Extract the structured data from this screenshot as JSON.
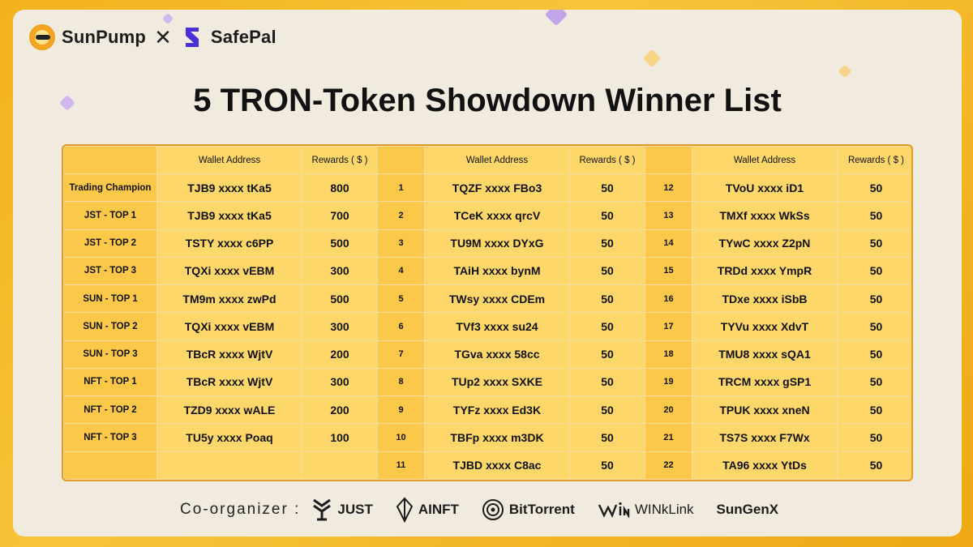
{
  "header": {
    "brand_left": "SunPump",
    "separator": "✕",
    "brand_right": "SafePal"
  },
  "title": "5 TRON-Token Showdown Winner List",
  "columns": {
    "wallet_header": "Wallet Address",
    "rewards_header": "Rewards ( $ )"
  },
  "left_rows": [
    {
      "label": "Trading Champion",
      "wallet": "TJB9 xxxx tKa5",
      "reward": "800"
    },
    {
      "label": "JST - TOP 1",
      "wallet": "TJB9 xxxx tKa5",
      "reward": "700"
    },
    {
      "label": "JST - TOP 2",
      "wallet": "TSTY xxxx c6PP",
      "reward": "500"
    },
    {
      "label": "JST - TOP 3",
      "wallet": "TQXi xxxx vEBM",
      "reward": "300"
    },
    {
      "label": "SUN - TOP 1",
      "wallet": "TM9m xxxx zwPd",
      "reward": "500"
    },
    {
      "label": "SUN - TOP 2",
      "wallet": "TQXi xxxx vEBM",
      "reward": "300"
    },
    {
      "label": "SUN - TOP 3",
      "wallet": "TBcR xxxx WjtV",
      "reward": "200"
    },
    {
      "label": "NFT - TOP 1",
      "wallet": "TBcR xxxx WjtV",
      "reward": "300"
    },
    {
      "label": "NFT - TOP 2",
      "wallet": "TZD9 xxxx wALE",
      "reward": "200"
    },
    {
      "label": "NFT - TOP 3",
      "wallet": "TU5y xxxx Poaq",
      "reward": "100"
    },
    {
      "label": "",
      "wallet": "",
      "reward": ""
    }
  ],
  "middle_rows": [
    {
      "rank": "1",
      "wallet": "TQZF xxxx FBo3",
      "reward": "50"
    },
    {
      "rank": "2",
      "wallet": "TCeK xxxx qrcV",
      "reward": "50"
    },
    {
      "rank": "3",
      "wallet": "TU9M xxxx DYxG",
      "reward": "50"
    },
    {
      "rank": "4",
      "wallet": "TAiH xxxx bynM",
      "reward": "50"
    },
    {
      "rank": "5",
      "wallet": "TWsy xxxx CDEm",
      "reward": "50"
    },
    {
      "rank": "6",
      "wallet": "TVf3 xxxx su24",
      "reward": "50"
    },
    {
      "rank": "7",
      "wallet": "TGva xxxx 58cc",
      "reward": "50"
    },
    {
      "rank": "8",
      "wallet": "TUp2 xxxx SXKE",
      "reward": "50"
    },
    {
      "rank": "9",
      "wallet": "TYFz xxxx Ed3K",
      "reward": "50"
    },
    {
      "rank": "10",
      "wallet": "TBFp xxxx m3DK",
      "reward": "50"
    },
    {
      "rank": "11",
      "wallet": "TJBD xxxx C8ac",
      "reward": "50"
    }
  ],
  "right_rows": [
    {
      "rank": "12",
      "wallet": "TVoU xxxx iD1",
      "reward": "50"
    },
    {
      "rank": "13",
      "wallet": "TMXf xxxx WkSs",
      "reward": "50"
    },
    {
      "rank": "14",
      "wallet": "TYwC xxxx Z2pN",
      "reward": "50"
    },
    {
      "rank": "15",
      "wallet": "TRDd xxxx YmpR",
      "reward": "50"
    },
    {
      "rank": "16",
      "wallet": "TDxe xxxx iSbB",
      "reward": "50"
    },
    {
      "rank": "17",
      "wallet": "TYVu xxxx XdvT",
      "reward": "50"
    },
    {
      "rank": "18",
      "wallet": "TMU8 xxxx sQA1",
      "reward": "50"
    },
    {
      "rank": "19",
      "wallet": "TRCM xxxx gSP1",
      "reward": "50"
    },
    {
      "rank": "20",
      "wallet": "TPUK xxxx xneN",
      "reward": "50"
    },
    {
      "rank": "21",
      "wallet": "TS7S xxxx F7Wx",
      "reward": "50"
    },
    {
      "rank": "22",
      "wallet": "TA96 xxxx YtDs",
      "reward": "50"
    }
  ],
  "footer": {
    "label": "Co-organizer :",
    "partners": [
      "JUST",
      "AINFT",
      "BitTorrent",
      "WINkLink",
      "SunGenX"
    ]
  },
  "colors": {
    "accent": "#fbc84a",
    "accent_light": "#fdd76a",
    "border": "#e0992a",
    "background": "#f1ebdf"
  }
}
